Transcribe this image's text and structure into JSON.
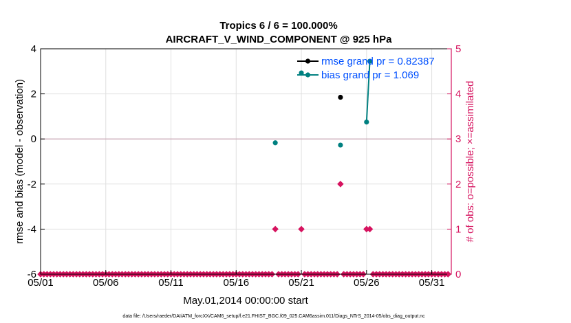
{
  "chart_data": {
    "type": "line",
    "title": "Tropics 6 / 6 = 100.000%",
    "subtitle": "AIRCRAFT_V_WIND_COMPONENT @ 925 hPa",
    "xlabel": "May.01,2014 00:00:00 start",
    "ylabel_left": "rmse and bias (model - observation)",
    "ylabel_right": "# of obs: o=possible; ×=assimilated",
    "footer": "data file: /Users/raeder/DAI/ATM_forcXX/CAM6_setup/f.e21.FHIST_BGC.f09_025.CAM6assim.011/Diags_NTrS_2014-05/obs_diag_output.nc",
    "x_range": [
      0,
      31.5
    ],
    "ylim_left": [
      -6,
      4
    ],
    "ylim_right": [
      0,
      5
    ],
    "x_ticks": [
      {
        "x": 0,
        "label": "05/01"
      },
      {
        "x": 5,
        "label": "05/06"
      },
      {
        "x": 10,
        "label": "05/11"
      },
      {
        "x": 15,
        "label": "05/16"
      },
      {
        "x": 20,
        "label": "05/21"
      },
      {
        "x": 25,
        "label": "05/26"
      },
      {
        "x": 30,
        "label": "05/31"
      }
    ],
    "y_ticks_left": [
      "-6",
      "-4",
      "-2",
      "0",
      "2",
      "4"
    ],
    "y_ticks_right": [
      "0",
      "1",
      "2",
      "3",
      "4",
      "5"
    ],
    "grid": true,
    "legend_position": "top-right",
    "colors": {
      "rmse": "#000000",
      "bias": "#008080",
      "obs": "#d6135f",
      "zero_line": "#c8a0b0",
      "legend_text": "#0050ff",
      "grid": "#e0e0e0"
    },
    "series": [
      {
        "name": "rmse grand pr = 0.82387",
        "axis": "left",
        "color": "#000000",
        "points": [
          [
            23,
            1.85
          ]
        ]
      },
      {
        "name": "bias grand pr = 1.069",
        "axis": "left",
        "color": "#008080",
        "points": [
          [
            18,
            -0.17
          ],
          [
            20,
            2.93
          ],
          [
            23,
            -0.27
          ],
          [
            25,
            0.75
          ],
          [
            25.25,
            3.45
          ]
        ]
      },
      {
        "name": "",
        "axis": "right",
        "color": "#d6135f",
        "points": [
          [
            0,
            0
          ],
          [
            0.25,
            0
          ],
          [
            0.5,
            0
          ],
          [
            0.75,
            0
          ],
          [
            1,
            0
          ],
          [
            1.25,
            0
          ],
          [
            1.5,
            0
          ],
          [
            1.75,
            0
          ],
          [
            2,
            0
          ],
          [
            2.25,
            0
          ],
          [
            2.5,
            0
          ],
          [
            2.75,
            0
          ],
          [
            3,
            0
          ],
          [
            3.25,
            0
          ],
          [
            3.5,
            0
          ],
          [
            3.75,
            0
          ],
          [
            4,
            0
          ],
          [
            4.25,
            0
          ],
          [
            4.5,
            0
          ],
          [
            4.75,
            0
          ],
          [
            5,
            0
          ],
          [
            5.25,
            0
          ],
          [
            5.5,
            0
          ],
          [
            5.75,
            0
          ],
          [
            6,
            0
          ],
          [
            6.25,
            0
          ],
          [
            6.5,
            0
          ],
          [
            6.75,
            0
          ],
          [
            7,
            0
          ],
          [
            7.25,
            0
          ],
          [
            7.5,
            0
          ],
          [
            7.75,
            0
          ],
          [
            8,
            0
          ],
          [
            8.25,
            0
          ],
          [
            8.5,
            0
          ],
          [
            8.75,
            0
          ],
          [
            9,
            0
          ],
          [
            9.25,
            0
          ],
          [
            9.5,
            0
          ],
          [
            9.75,
            0
          ],
          [
            10,
            0
          ],
          [
            10.25,
            0
          ],
          [
            10.5,
            0
          ],
          [
            10.75,
            0
          ],
          [
            11,
            0
          ],
          [
            11.25,
            0
          ],
          [
            11.5,
            0
          ],
          [
            11.75,
            0
          ],
          [
            12,
            0
          ],
          [
            12.25,
            0
          ],
          [
            12.5,
            0
          ],
          [
            12.75,
            0
          ],
          [
            13,
            0
          ],
          [
            13.25,
            0
          ],
          [
            13.5,
            0
          ],
          [
            13.75,
            0
          ],
          [
            14,
            0
          ],
          [
            14.25,
            0
          ],
          [
            14.5,
            0
          ],
          [
            14.75,
            0
          ],
          [
            15,
            0
          ],
          [
            15.25,
            0
          ],
          [
            15.5,
            0
          ],
          [
            15.75,
            0
          ],
          [
            16,
            0
          ],
          [
            16.25,
            0
          ],
          [
            16.5,
            0
          ],
          [
            16.75,
            0
          ],
          [
            17,
            0
          ],
          [
            17.25,
            0
          ],
          [
            17.5,
            0
          ],
          [
            17.75,
            0
          ],
          [
            18,
            1
          ],
          [
            18.25,
            0
          ],
          [
            18.5,
            0
          ],
          [
            18.75,
            0
          ],
          [
            19,
            0
          ],
          [
            19.25,
            0
          ],
          [
            19.5,
            0
          ],
          [
            19.75,
            0
          ],
          [
            20,
            1
          ],
          [
            20.25,
            0
          ],
          [
            20.5,
            0
          ],
          [
            20.75,
            0
          ],
          [
            21,
            0
          ],
          [
            21.25,
            0
          ],
          [
            21.5,
            0
          ],
          [
            21.75,
            0
          ],
          [
            22,
            0
          ],
          [
            22.25,
            0
          ],
          [
            22.5,
            0
          ],
          [
            22.75,
            0
          ],
          [
            23,
            2
          ],
          [
            23.25,
            0
          ],
          [
            23.5,
            0
          ],
          [
            23.75,
            0
          ],
          [
            24,
            0
          ],
          [
            24.25,
            0
          ],
          [
            24.5,
            0
          ],
          [
            24.75,
            0
          ],
          [
            25,
            1
          ],
          [
            25.25,
            1
          ],
          [
            25.5,
            0
          ],
          [
            25.75,
            0
          ],
          [
            26,
            0
          ],
          [
            26.25,
            0
          ],
          [
            26.5,
            0
          ],
          [
            26.75,
            0
          ],
          [
            27,
            0
          ],
          [
            27.25,
            0
          ],
          [
            27.5,
            0
          ],
          [
            27.75,
            0
          ],
          [
            28,
            0
          ],
          [
            28.25,
            0
          ],
          [
            28.5,
            0
          ],
          [
            28.75,
            0
          ],
          [
            29,
            0
          ],
          [
            29.25,
            0
          ],
          [
            29.5,
            0
          ],
          [
            29.75,
            0
          ],
          [
            30,
            0
          ],
          [
            30.25,
            0
          ],
          [
            30.5,
            0
          ],
          [
            30.75,
            0
          ],
          [
            31,
            0
          ],
          [
            31.25,
            0
          ]
        ]
      }
    ]
  }
}
